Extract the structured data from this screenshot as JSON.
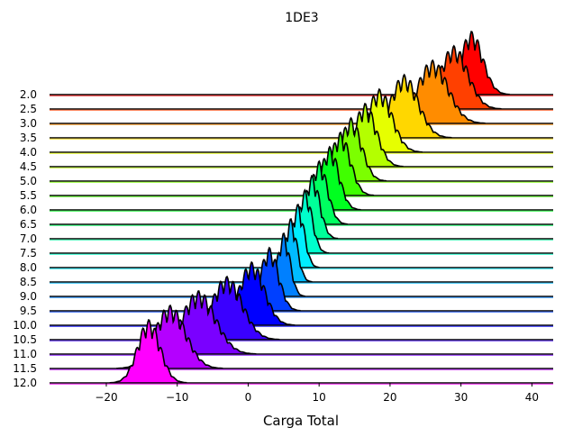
{
  "chart_data": {
    "type": "ridgeline",
    "title": "1DE3",
    "xlabel": "Carga Total",
    "ylabel": "",
    "xlim": [
      -28,
      43
    ],
    "xticks": [
      "−20",
      "−10",
      "0",
      "10",
      "20",
      "30",
      "40"
    ],
    "xtick_values": [
      -20,
      -10,
      0,
      10,
      20,
      30,
      40
    ],
    "categories": [
      "2.0",
      "2.5",
      "3.0",
      "3.5",
      "4.0",
      "4.5",
      "5.0",
      "5.5",
      "6.0",
      "6.5",
      "7.0",
      "7.5",
      "8.0",
      "8.5",
      "9.0",
      "9.5",
      "10.0",
      "10.5",
      "11.0",
      "11.5",
      "12.0"
    ],
    "series": [
      {
        "category": "2.0",
        "center": 31.5,
        "width": 1.6,
        "color": "#ff0000"
      },
      {
        "category": "2.5",
        "center": 29.0,
        "width": 2.0,
        "color": "#ff4000"
      },
      {
        "category": "3.0",
        "center": 26.0,
        "width": 2.2,
        "color": "#ff8c00"
      },
      {
        "category": "3.5",
        "center": 22.0,
        "width": 2.0,
        "color": "#ffd700"
      },
      {
        "category": "4.0",
        "center": 18.5,
        "width": 1.8,
        "color": "#e6ff00"
      },
      {
        "category": "4.5",
        "center": 16.5,
        "width": 1.6,
        "color": "#b4ff00"
      },
      {
        "category": "5.0",
        "center": 14.5,
        "width": 1.5,
        "color": "#7cff00"
      },
      {
        "category": "5.5",
        "center": 13.0,
        "width": 1.4,
        "color": "#40ff00"
      },
      {
        "category": "6.0",
        "center": 11.5,
        "width": 1.3,
        "color": "#00ff20"
      },
      {
        "category": "6.5",
        "center": 10.0,
        "width": 1.2,
        "color": "#00ff60"
      },
      {
        "category": "7.0",
        "center": 9.0,
        "width": 1.1,
        "color": "#00ff99"
      },
      {
        "category": "7.5",
        "center": 8.0,
        "width": 1.0,
        "color": "#00ffcc"
      },
      {
        "category": "8.0",
        "center": 7.0,
        "width": 0.9,
        "color": "#00eeff"
      },
      {
        "category": "8.5",
        "center": 6.0,
        "width": 0.9,
        "color": "#00bbff"
      },
      {
        "category": "9.0",
        "center": 5.0,
        "width": 0.9,
        "color": "#0080ff"
      },
      {
        "category": "9.5",
        "center": 3.0,
        "width": 1.3,
        "color": "#0040ff"
      },
      {
        "category": "10.0",
        "center": 0.5,
        "width": 1.8,
        "color": "#0000ff"
      },
      {
        "category": "10.5",
        "center": -3.0,
        "width": 2.2,
        "color": "#3a00ff"
      },
      {
        "category": "11.0",
        "center": -7.0,
        "width": 2.4,
        "color": "#7a00ff"
      },
      {
        "category": "11.5",
        "center": -11.0,
        "width": 2.2,
        "color": "#b400ff"
      },
      {
        "category": "12.0",
        "center": -14.0,
        "width": 1.6,
        "color": "#ff00ff"
      }
    ],
    "grid": false,
    "legend": "none"
  }
}
